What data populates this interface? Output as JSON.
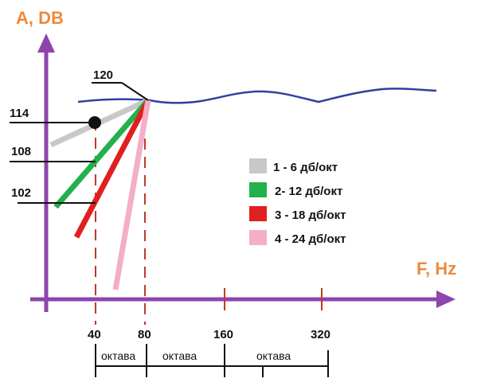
{
  "y_axis": {
    "title": "A, DB",
    "color": "#ee8a3c"
  },
  "x_axis": {
    "title": "F, Hz",
    "color": "#ee8a3c"
  },
  "axis_color": "#8e44ad",
  "level_labels": [
    "120",
    "114",
    "108",
    "102"
  ],
  "frequency_labels": [
    "40",
    "80",
    "160",
    "320"
  ],
  "octave_labels": [
    "октава",
    "октава",
    "октава"
  ],
  "response_curve_color": "#2f3f9e",
  "slopes": [
    {
      "label": "1 - 6 дб/окт",
      "color": "#c8c8c8"
    },
    {
      "label": "2- 12 дб/окт",
      "color": "#22b14c"
    },
    {
      "label": "3 - 18 дб/окт",
      "color": "#e02020"
    },
    {
      "label": "4 - 24 дб/окт",
      "color": "#f4aec8"
    }
  ],
  "guide_line_color": "#c0392b"
}
